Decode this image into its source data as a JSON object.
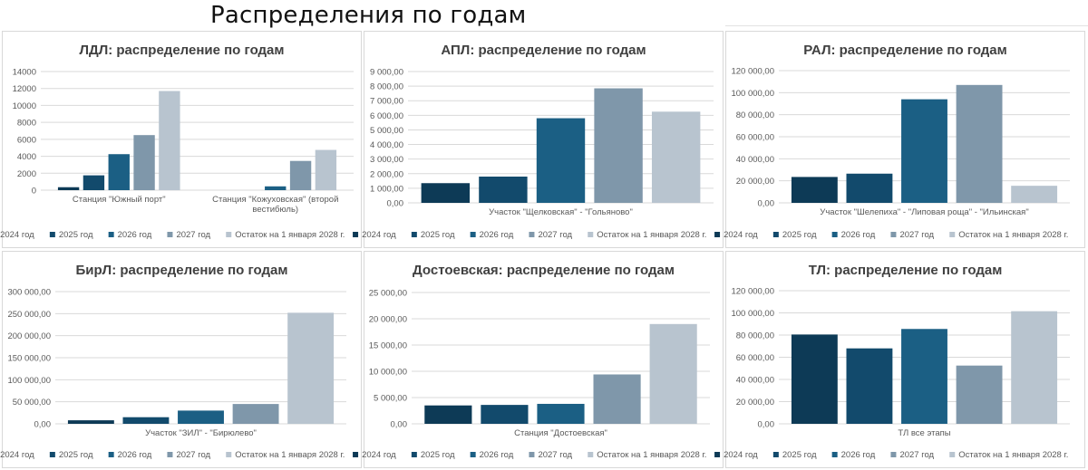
{
  "page_title": "Распределения по годам",
  "colors": {
    "2024 год": "#0d3a56",
    "2025 год": "#124a6c",
    "2026 год": "#1b5f84",
    "2027 год": "#7f97aa",
    "Остаток на 1 января 2028 г.": "#b8c4cf"
  },
  "legend": [
    "2024 год",
    "2025 год",
    "2026 год",
    "2027 год",
    "Остаток на 1 января 2028 г."
  ],
  "chart_data": [
    {
      "id": "ldl",
      "type": "bar",
      "title": "ЛДЛ: распределение по годам",
      "categories": [
        "Станция \"Южный порт\"",
        "Станция \"Кожуховская\" (второй вестибюль)"
      ],
      "category_lines": [
        [
          "Станция  \"Южный порт\""
        ],
        [
          "Станция  \"Кожуховская\" (второй",
          "вестибюль)"
        ]
      ],
      "series": [
        {
          "name": "2024 год",
          "values": [
            350,
            0
          ]
        },
        {
          "name": "2025 год",
          "values": [
            1750,
            0
          ]
        },
        {
          "name": "2026 год",
          "values": [
            4250,
            450
          ]
        },
        {
          "name": "2027 год",
          "values": [
            6500,
            3450
          ]
        },
        {
          "name": "Остаток на 1 января 2028 г.",
          "values": [
            11700,
            4750
          ]
        }
      ],
      "ylim": [
        0,
        14000
      ],
      "yticks": [
        "0",
        "2000",
        "4000",
        "6000",
        "8000",
        "10000",
        "12000",
        "14000"
      ]
    },
    {
      "id": "apl",
      "type": "bar",
      "title": "АПЛ: распределение по годам",
      "categories": [
        "Участок \"Щелковская\" - \"Гольяново\""
      ],
      "category_lines": [
        [
          "Участок \"Щелковская\" - \"Гольяново\""
        ]
      ],
      "series": [
        {
          "name": "2024 год",
          "values": [
            1350
          ]
        },
        {
          "name": "2025 год",
          "values": [
            1800
          ]
        },
        {
          "name": "2026 год",
          "values": [
            5800
          ]
        },
        {
          "name": "2027 год",
          "values": [
            7850
          ]
        },
        {
          "name": "Остаток на 1 января 2028 г.",
          "values": [
            6250
          ]
        }
      ],
      "ylim": [
        0,
        9000
      ],
      "yticks": [
        "0,00",
        "1 000,00",
        "2 000,00",
        "3 000,00",
        "4 000,00",
        "5 000,00",
        "6 000,00",
        "7 000,00",
        "8 000,00",
        "9 000,00"
      ]
    },
    {
      "id": "ral",
      "type": "bar",
      "title": "РАЛ: распределение по годам",
      "categories": [
        "Участок \"Шелепиха\" - \"Липовая роща\" - \"Ильинская\""
      ],
      "category_lines": [
        [
          "Участок  \"Шелепиха\" -  \"Липовая роща\" -  \"Ильинская\""
        ]
      ],
      "series": [
        {
          "name": "2024 год",
          "values": [
            23500
          ]
        },
        {
          "name": "2025 год",
          "values": [
            26500
          ]
        },
        {
          "name": "2026 год",
          "values": [
            94000
          ]
        },
        {
          "name": "2027 год",
          "values": [
            107000
          ]
        },
        {
          "name": "Остаток на 1 января 2028 г.",
          "values": [
            15500
          ]
        }
      ],
      "ylim": [
        0,
        120000
      ],
      "yticks": [
        "0,00",
        "20 000,00",
        "40 000,00",
        "60 000,00",
        "80 000,00",
        "100 000,00",
        "120 000,00"
      ]
    },
    {
      "id": "birl",
      "type": "bar",
      "title": "БирЛ: распределение по годам",
      "categories": [
        "Участок \"ЗИЛ\" - \"Бирюлево\""
      ],
      "category_lines": [
        [
          "Участок \"ЗИЛ\" - \"Бирюлево\""
        ]
      ],
      "series": [
        {
          "name": "2024 год",
          "values": [
            8000
          ]
        },
        {
          "name": "2025 год",
          "values": [
            15000
          ]
        },
        {
          "name": "2026 год",
          "values": [
            30000
          ]
        },
        {
          "name": "2027 год",
          "values": [
            45000
          ]
        },
        {
          "name": "Остаток на 1 января 2028 г.",
          "values": [
            252000
          ]
        }
      ],
      "ylim": [
        0,
        300000
      ],
      "yticks": [
        "0,00",
        "50 000,00",
        "100 000,00",
        "150 000,00",
        "200 000,00",
        "250 000,00",
        "300 000,00"
      ]
    },
    {
      "id": "dost",
      "type": "bar",
      "title": "Достоевская: распределение по годам",
      "categories": [
        "Станция \"Достоевская\""
      ],
      "category_lines": [
        [
          "Станция \"Достоевская\""
        ]
      ],
      "series": [
        {
          "name": "2024 год",
          "values": [
            3500
          ]
        },
        {
          "name": "2025 год",
          "values": [
            3600
          ]
        },
        {
          "name": "2026 год",
          "values": [
            3800
          ]
        },
        {
          "name": "2027 год",
          "values": [
            9400
          ]
        },
        {
          "name": "Остаток на 1 января 2028 г.",
          "values": [
            19000
          ]
        }
      ],
      "ylim": [
        0,
        25000
      ],
      "yticks": [
        "0,00",
        "5 000,00",
        "10 000,00",
        "15 000,00",
        "20 000,00",
        "25 000,00"
      ]
    },
    {
      "id": "tl",
      "type": "bar",
      "title": "ТЛ: распределение по годам",
      "categories": [
        "ТЛ все этапы"
      ],
      "category_lines": [
        [
          "ТЛ все этапы"
        ]
      ],
      "series": [
        {
          "name": "2024 год",
          "values": [
            80500
          ]
        },
        {
          "name": "2025 год",
          "values": [
            68000
          ]
        },
        {
          "name": "2026 год",
          "values": [
            85500
          ]
        },
        {
          "name": "2027 год",
          "values": [
            52500
          ]
        },
        {
          "name": "Остаток на 1 января 2028 г.",
          "values": [
            101500
          ]
        }
      ],
      "ylim": [
        0,
        120000
      ],
      "yticks": [
        "0,00",
        "20 000,00",
        "40 000,00",
        "60 000,00",
        "80 000,00",
        "100 000,00",
        "120 000,00"
      ]
    }
  ]
}
